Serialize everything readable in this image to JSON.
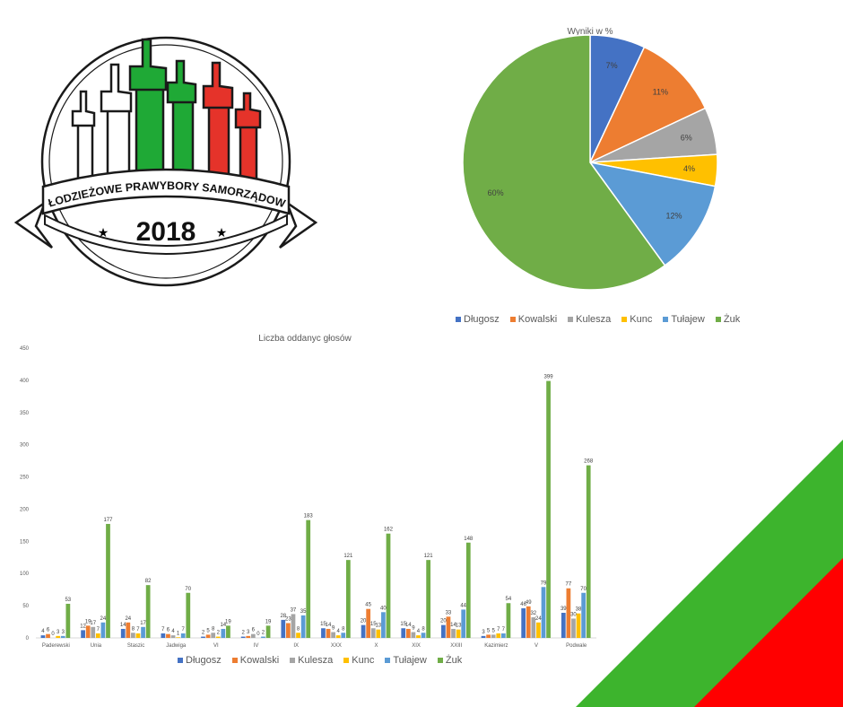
{
  "logo": {
    "banner_text": "MŁODZIEŻOWE PRAWYBORY SAMORZĄDOWE",
    "year": "2018",
    "colors": {
      "green": "#1fa936",
      "red": "#e5332a",
      "outline": "#1a1a1a"
    }
  },
  "corner": {
    "colors": {
      "green": "#3db42d",
      "red": "#ff0000"
    }
  },
  "colors": {
    "Długosz": "#4472c4",
    "Kowalski": "#ed7d31",
    "Kulesza": "#a5a5a5",
    "Kunc": "#ffc000",
    "Tułajew": "#5b9bd5",
    "Żuk": "#70ad47"
  },
  "chart_data": [
    {
      "type": "pie",
      "title": "Wyniki w %",
      "labels": [
        "Długosz",
        "Kowalski",
        "Kulesza",
        "Kunc",
        "Tułajew",
        "Żuk"
      ],
      "values": [
        7,
        11,
        6,
        4,
        12,
        60
      ],
      "value_labels": [
        "7%",
        "11%",
        "6%",
        "4%",
        "12%",
        "60%"
      ],
      "legend": "bottom"
    },
    {
      "type": "bar",
      "title": "Liczba oddanyc głosów",
      "categories": [
        "Paderewski",
        "Unia",
        "Staszic",
        "Jadwiga",
        "VI",
        "IV",
        "IX",
        "XXX",
        "X",
        "XIX",
        "XXIII",
        "Kazimierz",
        "V",
        "Podwale"
      ],
      "series": [
        {
          "name": "Długosz",
          "values": [
            4,
            12,
            14,
            7,
            2,
            2,
            28,
            15,
            20,
            15,
            20,
            3,
            46,
            39
          ]
        },
        {
          "name": "Kowalski",
          "values": [
            6,
            19,
            24,
            6,
            5,
            3,
            23,
            14,
            45,
            14,
            33,
            5,
            49,
            77
          ]
        },
        {
          "name": "Kulesza",
          "values": [
            0,
            17,
            8,
            4,
            8,
            6,
            37,
            9,
            15,
            9,
            14,
            5,
            32,
            30
          ]
        },
        {
          "name": "Kunc",
          "values": [
            3,
            7,
            7,
            1,
            2,
            0,
            8,
            4,
            13,
            4,
            13,
            7,
            24,
            38
          ]
        },
        {
          "name": "Tułajew",
          "values": [
            3,
            24,
            17,
            7,
            14,
            2,
            35,
            8,
            40,
            8,
            44,
            7,
            79,
            70
          ]
        },
        {
          "name": "Żuk",
          "values": [
            53,
            177,
            82,
            70,
            19,
            19,
            183,
            121,
            162,
            121,
            148,
            54,
            399,
            268
          ]
        }
      ],
      "ylim": [
        0,
        450
      ],
      "yticks": [
        0,
        50,
        100,
        150,
        200,
        250,
        300,
        350,
        400,
        450
      ],
      "grid": false,
      "legend": "bottom"
    }
  ]
}
